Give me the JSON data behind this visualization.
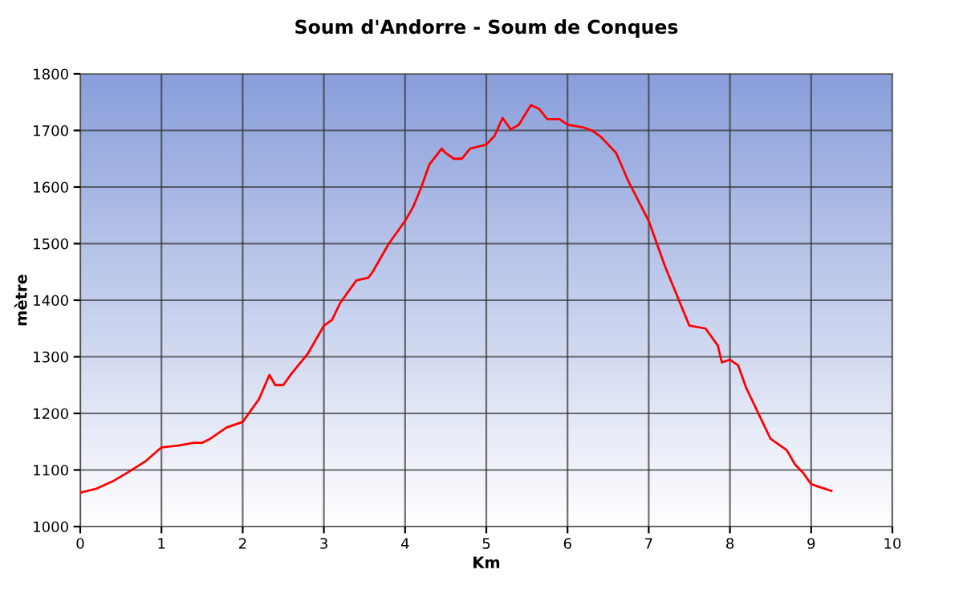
{
  "chart_data": {
    "type": "line",
    "title": "Soum d'Andorre - Soum de Conques",
    "xlabel": "Km",
    "ylabel": "mètre",
    "x": [
      0,
      0.2,
      0.4,
      0.6,
      0.8,
      1.0,
      1.2,
      1.4,
      1.5,
      1.6,
      1.8,
      2.0,
      2.2,
      2.33,
      2.4,
      2.5,
      2.6,
      2.8,
      3.0,
      3.1,
      3.2,
      3.3,
      3.4,
      3.55,
      3.6,
      3.8,
      4.0,
      4.1,
      4.2,
      4.3,
      4.45,
      4.5,
      4.6,
      4.7,
      4.8,
      5.0,
      5.1,
      5.2,
      5.3,
      5.4,
      5.55,
      5.65,
      5.75,
      5.9,
      6.0,
      6.2,
      6.3,
      6.4,
      6.6,
      6.75,
      7.0,
      7.2,
      7.4,
      7.5,
      7.7,
      7.85,
      7.9,
      8.0,
      8.1,
      8.2,
      8.4,
      8.5,
      8.7,
      8.8,
      8.9,
      9.0,
      9.1,
      9.25
    ],
    "series": [
      {
        "color": "#ff0000",
        "values": [
          1060,
          1067,
          1080,
          1097,
          1115,
          1140,
          1143,
          1148,
          1148,
          1155,
          1175,
          1185,
          1225,
          1268,
          1250,
          1250,
          1270,
          1305,
          1355,
          1365,
          1395,
          1415,
          1435,
          1440,
          1450,
          1500,
          1540,
          1565,
          1600,
          1640,
          1668,
          1660,
          1650,
          1650,
          1668,
          1675,
          1690,
          1722,
          1702,
          1710,
          1745,
          1738,
          1720,
          1720,
          1710,
          1705,
          1700,
          1690,
          1660,
          1610,
          1540,
          1460,
          1390,
          1355,
          1350,
          1320,
          1290,
          1295,
          1285,
          1245,
          1185,
          1155,
          1135,
          1110,
          1095,
          1075,
          1070,
          1063
        ]
      }
    ],
    "xlim": [
      0,
      10
    ],
    "xticks": [
      0,
      1,
      2,
      3,
      4,
      5,
      6,
      7,
      8,
      9,
      10
    ],
    "ylim": [
      1000,
      1800
    ],
    "yticks": [
      1000,
      1100,
      1200,
      1300,
      1400,
      1500,
      1600,
      1700,
      1800
    ],
    "grid": true,
    "marker": "none",
    "line_style": "solid"
  }
}
